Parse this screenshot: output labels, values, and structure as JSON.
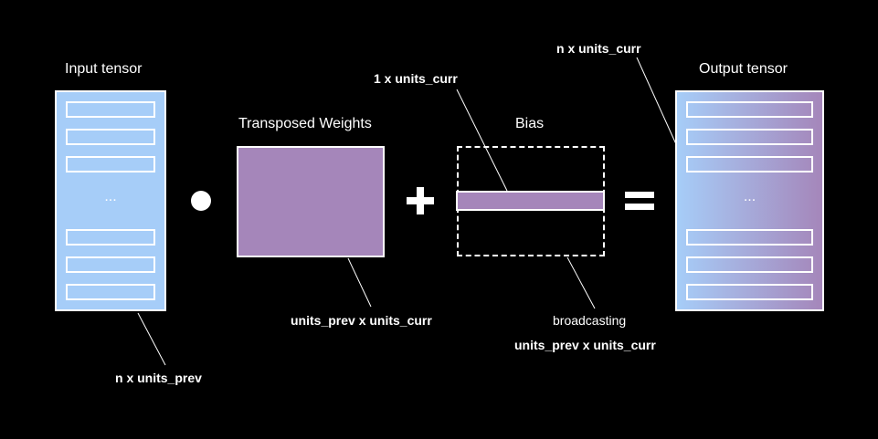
{
  "colors": {
    "background": "#000000",
    "input_fill": "#A6CDF8",
    "weights_fill": "#A586BA",
    "output_gradient_start": "#A6CDF8",
    "output_gradient_end": "#A586BA",
    "stroke": "#FFFFFF"
  },
  "input_tensor": {
    "title": "Input tensor",
    "ellipsis": "...",
    "dim_label": "n x units_prev"
  },
  "weights": {
    "title": "Transposed Weights",
    "dim_label": "units_prev x units_curr"
  },
  "bias": {
    "title": "Bias",
    "dim_label": "1 x units_curr",
    "broadcast_label": "broadcasting",
    "broadcast_dim_label": "units_prev x units_curr"
  },
  "output_tensor": {
    "title": "Output tensor",
    "ellipsis": "...",
    "dim_label": "n x units_curr"
  },
  "operators": {
    "dot": "dot-product",
    "plus": "plus-sign",
    "equals": "equals-sign"
  }
}
